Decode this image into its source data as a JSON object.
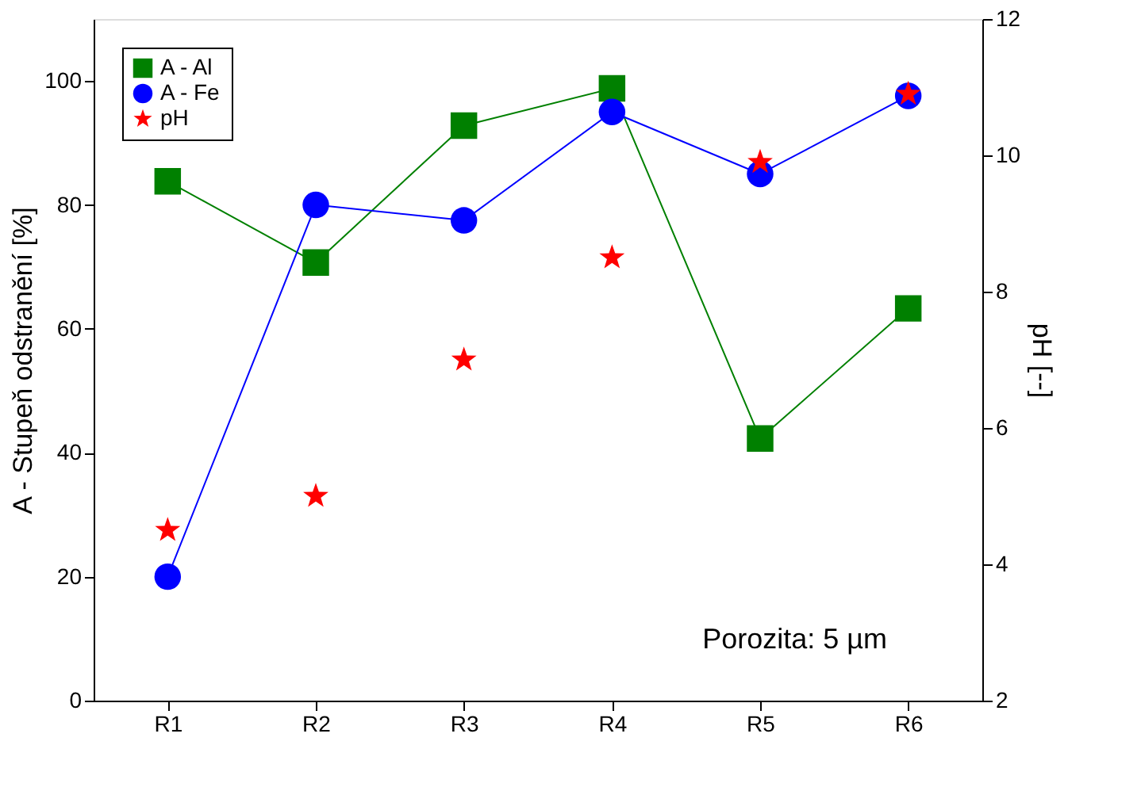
{
  "chart_data": {
    "type": "line",
    "xlabel": null,
    "ylabel": "A - Stupeň odstranění [%]",
    "y2label": "pH [--]",
    "categories": [
      "R1",
      "R2",
      "R3",
      "R4",
      "R5",
      "R6"
    ],
    "series": [
      {
        "name": "A - Al",
        "marker": "square",
        "color": "#008000",
        "values": [
          83.8,
          70.7,
          92.8,
          98.8,
          42.3,
          63.3
        ]
      },
      {
        "name": "A - Fe",
        "marker": "circle",
        "color": "#0000ff",
        "values": [
          20,
          80,
          77.5,
          95,
          85,
          97.6
        ]
      },
      {
        "name": "pH",
        "type": "scatter",
        "marker": "star",
        "color": "#ff0000",
        "axis": "y2",
        "values": [
          4.5,
          5.0,
          7.0,
          8.5,
          9.9,
          10.9
        ]
      }
    ],
    "ylim": [
      0,
      110
    ],
    "yticks": [
      0,
      20,
      40,
      60,
      80,
      100
    ],
    "y2lim": [
      2,
      12
    ],
    "y2ticks": [
      2,
      4,
      6,
      8,
      10,
      12
    ],
    "annotations": [
      "Porozita: 5 µm"
    ],
    "legend": "top left",
    "grid": false
  }
}
